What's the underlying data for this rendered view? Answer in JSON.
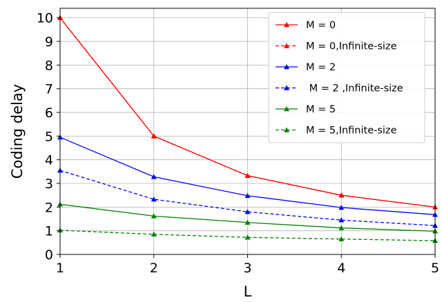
{
  "chart_data": {
    "type": "line",
    "xlabel": "L",
    "ylabel": "Coding delay",
    "xlim": [
      1,
      5
    ],
    "ylim": [
      0,
      10.4
    ],
    "xticks": [
      1,
      2,
      3,
      4,
      5
    ],
    "yticks": [
      0,
      1,
      2,
      3,
      4,
      5,
      6,
      7,
      8,
      9,
      10
    ],
    "grid": true,
    "legend_position": "top-right",
    "x": [
      1,
      2,
      3,
      4,
      5
    ],
    "series": [
      {
        "name": "M = 0",
        "values": [
          10.0,
          5.0,
          3.33,
          2.5,
          2.0
        ],
        "color": "#ff0000",
        "style": "solid",
        "marker": "triangle-up"
      },
      {
        "name": "M = 0,Infinite-size",
        "values": [
          10.0,
          5.0,
          3.33,
          2.5,
          2.0
        ],
        "color": "#ff0000",
        "style": "dashed",
        "marker": "triangle-up"
      },
      {
        "name": "M = 2",
        "values": [
          4.95,
          3.28,
          2.48,
          1.98,
          1.68
        ],
        "color": "#0000ff",
        "style": "solid",
        "marker": "triangle-up"
      },
      {
        "name": " M = 2 ,Infinite-size",
        "values": [
          3.55,
          2.33,
          1.8,
          1.45,
          1.22
        ],
        "color": "#0000ff",
        "style": "dashed",
        "marker": "triangle-up"
      },
      {
        "name": "M = 5",
        "values": [
          2.12,
          1.62,
          1.35,
          1.12,
          0.98
        ],
        "color": "#008000",
        "style": "solid",
        "marker": "triangle-up"
      },
      {
        "name": "M = 5,Infinite-size",
        "values": [
          1.02,
          0.85,
          0.72,
          0.65,
          0.58
        ],
        "color": "#008000",
        "style": "dashed",
        "marker": "triangle-up"
      }
    ]
  }
}
